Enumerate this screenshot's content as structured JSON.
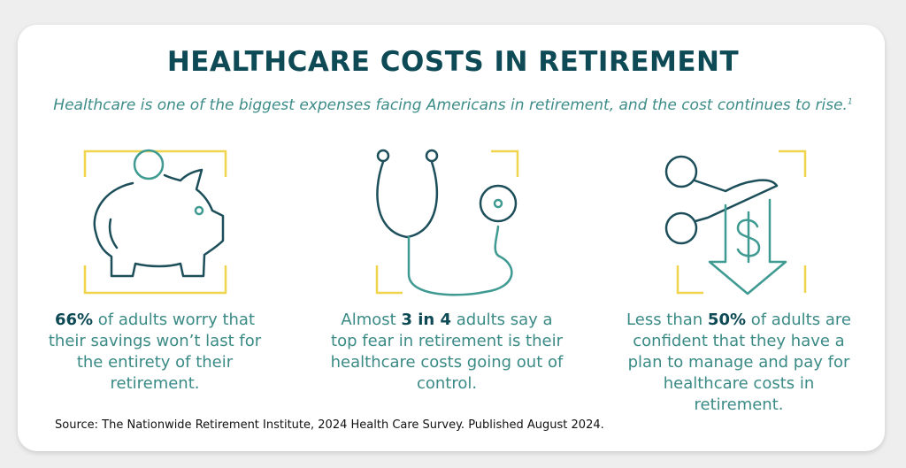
{
  "header": {
    "title": "HEALTHCARE COSTS IN RETIREMENT",
    "subtitle": "Healthcare is one of the biggest expenses facing Americans in retirement, and the cost continues to rise.",
    "footnote_mark": "1"
  },
  "stats": [
    {
      "highlight": "66%",
      "after": " of adults worry that their savings won’t last for the entirety of their retirement."
    },
    {
      "before": "Almost ",
      "highlight": "3 in 4",
      "after": " adults say a top fear in retirement is their healthcare costs going out of control."
    },
    {
      "before": "Less than ",
      "highlight": "50%",
      "after": " of adults are confident that they have a plan to manage and pay for healthcare costs in retirement."
    }
  ],
  "source": "Source: The Nationwide Retirement Institute, 2024 Health Care Survey. Published August 2024."
}
